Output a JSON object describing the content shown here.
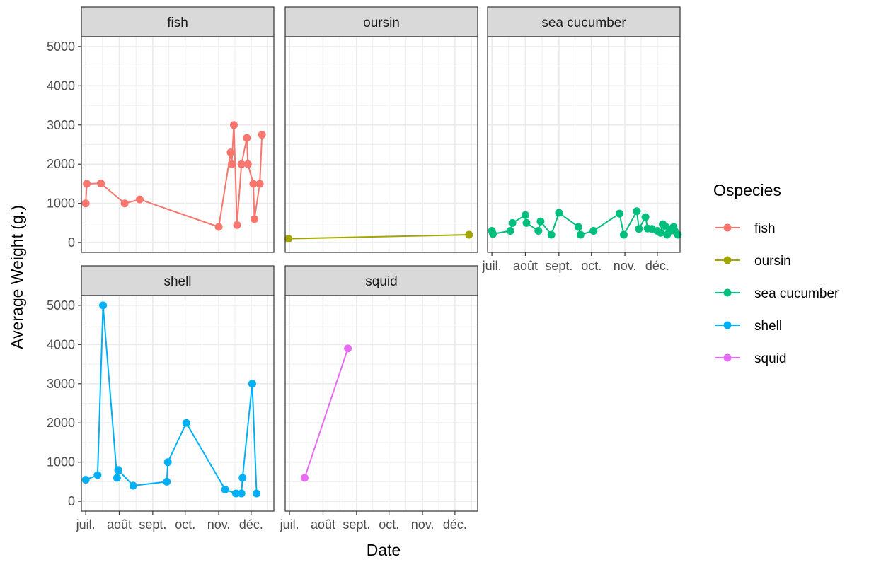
{
  "chart_data": {
    "type": "line",
    "facet_layout": "facet_wrap, 3 columns, shared axes",
    "xlabel": "Date",
    "ylabel": "Average Weight (g.)",
    "x_ticks": [
      "juil.",
      "août",
      "sept.",
      "oct.",
      "nov.",
      "déc."
    ],
    "x_tick_dates": [
      "2021-07-01",
      "2021-08-01",
      "2021-09-01",
      "2021-10-01",
      "2021-11-01",
      "2021-12-01"
    ],
    "xlim": [
      "2021-06-27",
      "2021-12-22"
    ],
    "y_ticks": [
      0,
      1000,
      2000,
      3000,
      4000,
      5000
    ],
    "ylim": [
      -250,
      5250
    ],
    "grid": true,
    "legend": {
      "title": "Ospecies",
      "position": "right",
      "entries": [
        "fish",
        "oursin",
        "sea cucumber",
        "shell",
        "squid"
      ]
    },
    "series": [
      {
        "name": "fish",
        "color": "#F8766D",
        "x": [
          "2021-07-01",
          "2021-07-02",
          "2021-07-15",
          "2021-08-06",
          "2021-08-20",
          "2021-11-01",
          "2021-11-12",
          "2021-11-13",
          "2021-11-15",
          "2021-11-18",
          "2021-11-22",
          "2021-11-27",
          "2021-11-28",
          "2021-12-03",
          "2021-12-04",
          "2021-12-09",
          "2021-12-11"
        ],
        "y": [
          1000,
          1500,
          1510,
          1000,
          1100,
          400,
          2300,
          2000,
          3000,
          450,
          2000,
          2670,
          2000,
          1500,
          600,
          1500,
          2750
        ]
      },
      {
        "name": "oursin",
        "color": "#A3A500",
        "x": [
          "2021-06-30",
          "2021-12-14"
        ],
        "y": [
          100,
          200
        ]
      },
      {
        "name": "sea cucumber",
        "color": "#00BF7D",
        "x": [
          "2021-07-01",
          "2021-07-02",
          "2021-07-18",
          "2021-07-20",
          "2021-08-01",
          "2021-08-02",
          "2021-08-13",
          "2021-08-15",
          "2021-08-25",
          "2021-09-01",
          "2021-09-19",
          "2021-09-21",
          "2021-10-03",
          "2021-10-27",
          "2021-10-31",
          "2021-11-12",
          "2021-11-14",
          "2021-11-20",
          "2021-11-22",
          "2021-11-26",
          "2021-12-01",
          "2021-12-04",
          "2021-12-06",
          "2021-12-09",
          "2021-12-10",
          "2021-12-13",
          "2021-12-14",
          "2021-12-16",
          "2021-12-17",
          "2021-12-20"
        ],
        "y": [
          300,
          220,
          300,
          500,
          700,
          500,
          300,
          540,
          200,
          760,
          400,
          200,
          300,
          740,
          200,
          800,
          350,
          650,
          360,
          350,
          300,
          250,
          470,
          400,
          200,
          300,
          350,
          400,
          300,
          200
        ]
      },
      {
        "name": "shell",
        "color": "#00B0F6",
        "x": [
          "2021-07-01",
          "2021-07-12",
          "2021-07-17",
          "2021-07-30",
          "2021-07-31",
          "2021-08-14",
          "2021-09-14",
          "2021-09-15",
          "2021-10-02",
          "2021-11-07",
          "2021-11-17",
          "2021-11-22",
          "2021-11-23",
          "2021-12-02",
          "2021-12-06"
        ],
        "y": [
          550,
          670,
          5000,
          600,
          800,
          400,
          500,
          1000,
          2000,
          300,
          200,
          200,
          600,
          3000,
          200
        ]
      },
      {
        "name": "squid",
        "color": "#E76BF3",
        "x": [
          "2021-07-15",
          "2021-08-24"
        ],
        "y": [
          600,
          3900
        ]
      }
    ]
  }
}
